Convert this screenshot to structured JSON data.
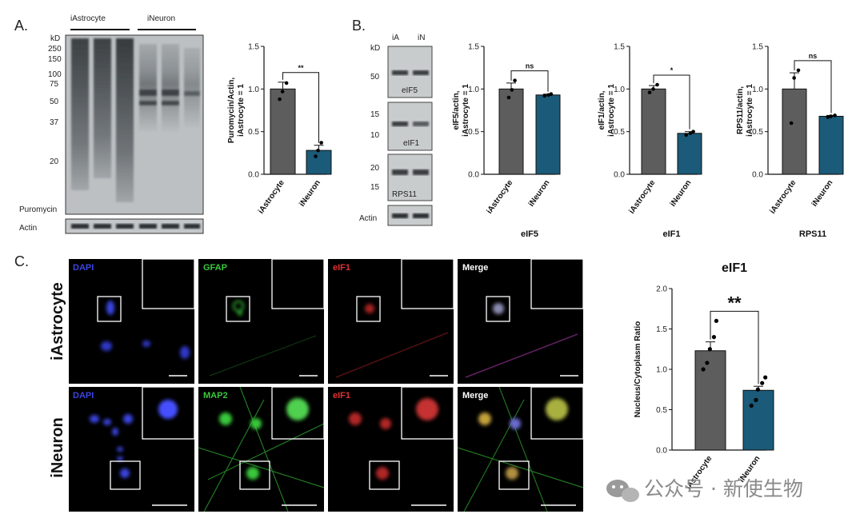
{
  "panels": {
    "a_label": "A.",
    "b_label": "B.",
    "c_label": "C."
  },
  "blot_a": {
    "group_left": "iAstrocyte",
    "group_right": "iNeuron",
    "kd_title": "kD",
    "kd_markers": [
      "250",
      "150",
      "100",
      "75",
      "50",
      "37",
      "20"
    ],
    "band_label": "Puromycin",
    "actin_label": "Actin"
  },
  "blot_b": {
    "kd_title": "kD",
    "lane_labels": [
      "iA",
      "iN"
    ],
    "strips": [
      {
        "name": "eIF5",
        "kd": "50"
      },
      {
        "name": "eIF1",
        "kd": "15",
        "kd2": "10"
      },
      {
        "name": "RPS11",
        "kd": "20",
        "kd2": "15"
      }
    ],
    "actin_label": "Actin"
  },
  "chart_data": [
    {
      "type": "bar",
      "panel": "A",
      "categories": [
        "iAstrocyte",
        "iNeuron"
      ],
      "values": [
        1.0,
        0.28
      ],
      "errors": [
        0.08,
        0.06
      ],
      "points": [
        [
          0.88,
          0.97,
          1.07
        ],
        [
          0.21,
          0.28,
          0.37
        ]
      ],
      "title": "",
      "ylabel": "Puromycin/Actin, iAstrocyte = 1",
      "ylim": [
        0,
        1.5
      ],
      "yticks": [
        "0.0",
        "0.5",
        "1.0",
        "1.5"
      ],
      "significance": "**"
    },
    {
      "type": "bar",
      "panel": "B",
      "categories": [
        "iAstrocyte",
        "iNeuron"
      ],
      "values": [
        1.0,
        0.93
      ],
      "errors": [
        0.07,
        0.01
      ],
      "points": [
        [
          0.9,
          0.99,
          1.1
        ],
        [
          0.92,
          0.93,
          0.94
        ]
      ],
      "title": "eIF5",
      "ylabel": "eIF5/actin, iAstrocyte = 1",
      "ylim": [
        0,
        1.5
      ],
      "yticks": [
        "0.0",
        "0.5",
        "1.0",
        "1.5"
      ],
      "significance": "ns"
    },
    {
      "type": "bar",
      "panel": "B",
      "categories": [
        "iAstrocyte",
        "iNeuron"
      ],
      "values": [
        1.0,
        0.48
      ],
      "errors": [
        0.04,
        0.02
      ],
      "points": [
        [
          0.96,
          1.0,
          1.05
        ],
        [
          0.46,
          0.48,
          0.5
        ]
      ],
      "title": "eIF1",
      "ylabel": "eIF1/actin, iAstrocyte = 1",
      "ylim": [
        0,
        1.5
      ],
      "yticks": [
        "0.0",
        "0.5",
        "1.0",
        "1.5"
      ],
      "significance": "*"
    },
    {
      "type": "bar",
      "panel": "B",
      "categories": [
        "iAstrocyte",
        "iNeuron"
      ],
      "values": [
        1.0,
        0.68
      ],
      "errors": [
        0.19,
        0.01
      ],
      "points": [
        [
          0.6,
          1.13,
          1.22
        ],
        [
          0.67,
          0.68,
          0.69
        ]
      ],
      "title": "RPS11",
      "ylabel": "RPS11/actin, iAstrocyte = 1",
      "ylim": [
        0,
        1.5
      ],
      "yticks": [
        "0.0",
        "0.5",
        "1.0",
        "1.5"
      ],
      "significance": "ns"
    },
    {
      "type": "bar",
      "panel": "C",
      "categories": [
        "iAstrocyte",
        "iNeuron"
      ],
      "values": [
        1.23,
        0.74
      ],
      "errors": [
        0.11,
        0.05
      ],
      "points": [
        [
          1.0,
          1.08,
          1.25,
          1.4,
          1.6
        ],
        [
          0.55,
          0.62,
          0.75,
          0.83,
          0.9
        ]
      ],
      "title": "eIF1",
      "ylabel": "Nucleus/Cytoplasm Ratio",
      "ylim": [
        0,
        2.0
      ],
      "yticks": [
        "0.0",
        "0.5",
        "1.0",
        "1.5",
        "2.0"
      ],
      "significance": "**"
    }
  ],
  "micro": {
    "rows": [
      "iAstrocyte",
      "iNeuron"
    ],
    "row1_channels": [
      "DAPI",
      "GFAP",
      "eIF1",
      "Merge"
    ],
    "row2_channels": [
      "DAPI",
      "MAP2",
      "eIF1",
      "Merge"
    ],
    "colors": {
      "dapi": "#3b44e0",
      "gfap": "#39c83a",
      "map2": "#39c83a",
      "eif1": "#e03030",
      "merge": "#ffffff"
    }
  },
  "colors": {
    "astrocyte_bar": "#5d5d5d",
    "neuron_bar": "#1b5a78"
  },
  "watermark": "公众号 · 新使生物"
}
